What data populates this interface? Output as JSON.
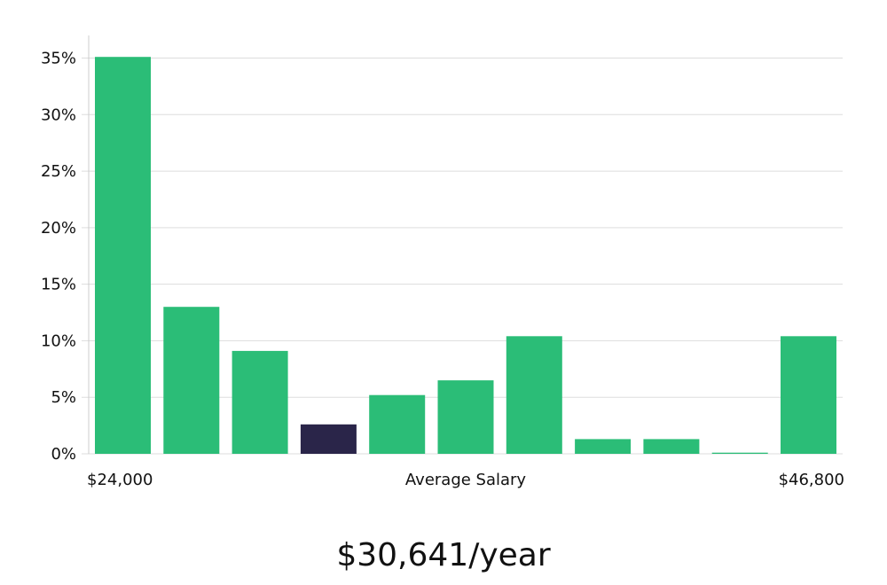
{
  "chart_data": {
    "type": "bar",
    "xlabel": "Average Salary",
    "x_min_label": "$24,000",
    "x_max_label": "$46,800",
    "y_ticks": [
      "0%",
      "5%",
      "10%",
      "15%",
      "20%",
      "25%",
      "30%",
      "35%"
    ],
    "ylim": [
      0,
      37
    ],
    "grid": true,
    "values": [
      35.1,
      13.0,
      9.1,
      2.6,
      5.2,
      6.5,
      10.4,
      1.3,
      1.3,
      0.1,
      10.4
    ],
    "highlight_index": 3,
    "colors": {
      "bar": "#2bbd77",
      "highlight": "#2a2549",
      "grid": "#dddddd",
      "axis": "#cccccc"
    }
  },
  "salary": {
    "headline": "$30,641/year"
  }
}
